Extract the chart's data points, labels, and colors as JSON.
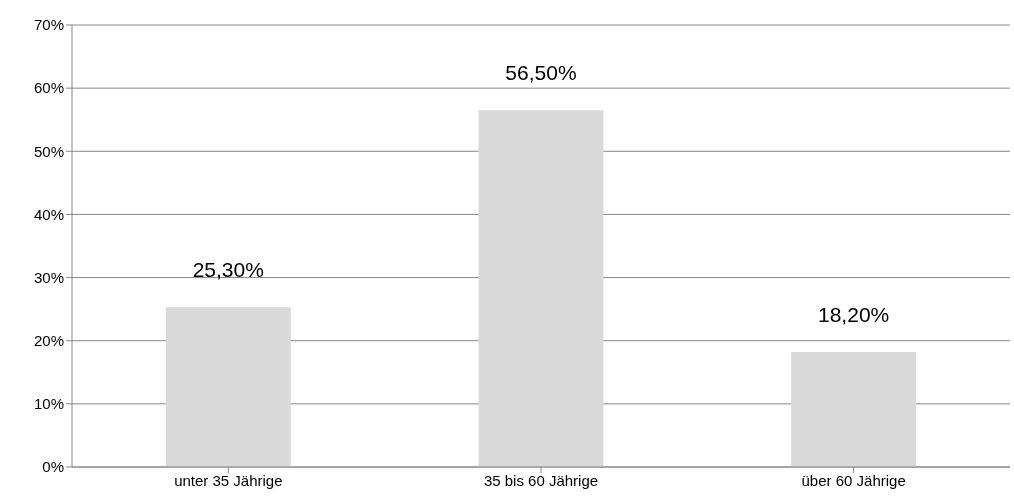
{
  "chart_data": {
    "type": "bar",
    "categories": [
      "unter 35 Jährige",
      "35 bis 60 Jährige",
      "über 60 Jährige"
    ],
    "values": [
      25.3,
      56.5,
      18.2
    ],
    "value_labels": [
      "25,30%",
      "56,50%",
      "18,20%"
    ],
    "color": "#d9d9d9",
    "ylim": [
      0,
      70
    ],
    "yticks": [
      {
        "value": 0,
        "label": "0%"
      },
      {
        "value": 10,
        "label": "10%"
      },
      {
        "value": 20,
        "label": "20%"
      },
      {
        "value": 30,
        "label": "30%"
      },
      {
        "value": 40,
        "label": "40%"
      },
      {
        "value": 50,
        "label": "50%"
      },
      {
        "value": 60,
        "label": "60%"
      },
      {
        "value": 70,
        "label": "70%"
      }
    ],
    "grid": "y"
  }
}
